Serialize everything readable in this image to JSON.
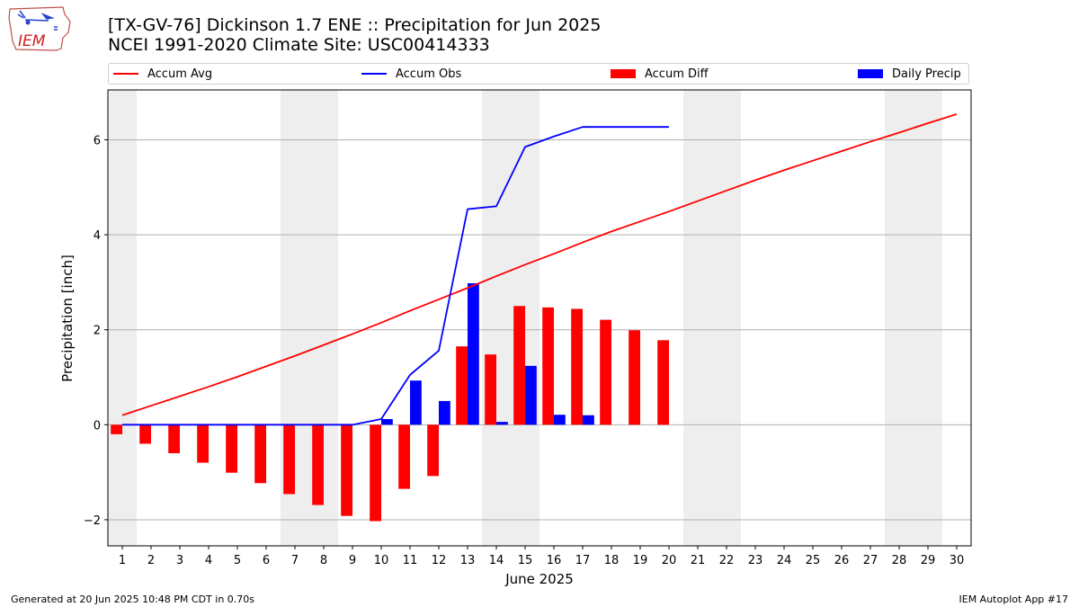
{
  "header": {
    "title": "[TX-GV-76] Dickinson 1.7 ENE :: Precipitation for Jun 2025",
    "subtitle": "NCEI 1991-2020 Climate Site: USC00414333",
    "logo_text": "IEM"
  },
  "footer": {
    "generated": "Generated at 20 Jun 2025 10:48 PM CDT in 0.70s",
    "app": "IEM Autoplot App #17"
  },
  "colors": {
    "avg": "#ff0000",
    "obs": "#0000ff",
    "diff": "#ff0000",
    "daily": "#0000ff",
    "weekend_shade": "#eeeeee",
    "grid": "#b0b0b0"
  },
  "chart_data": {
    "type": "bar",
    "xlabel": "June 2025",
    "ylabel": "Precipitation [inch]",
    "xlim": [
      0.5,
      30.5
    ],
    "ylim": [
      -2.55,
      7.05
    ],
    "yticks": [
      -2,
      0,
      2,
      4,
      6
    ],
    "ytick_labels": [
      "−2",
      "0",
      "2",
      "4",
      "6"
    ],
    "grid": "horizontal",
    "legend_position": "top",
    "days": [
      1,
      2,
      3,
      4,
      5,
      6,
      7,
      8,
      9,
      10,
      11,
      12,
      13,
      14,
      15,
      16,
      17,
      18,
      19,
      20,
      21,
      22,
      23,
      24,
      25,
      26,
      27,
      28,
      29,
      30
    ],
    "weekend_days": [
      1,
      7,
      8,
      14,
      15,
      21,
      22,
      28,
      29
    ],
    "series": [
      {
        "name": "Accum Avg",
        "kind": "line",
        "days": [
          1,
          2,
          3,
          4,
          5,
          6,
          7,
          8,
          9,
          10,
          11,
          12,
          13,
          14,
          15,
          16,
          17,
          18,
          19,
          20,
          21,
          22,
          23,
          24,
          25,
          26,
          27,
          28,
          29,
          30
        ],
        "values": [
          0.2,
          0.4,
          0.6,
          0.8,
          1.01,
          1.23,
          1.45,
          1.68,
          1.91,
          2.15,
          2.4,
          2.64,
          2.88,
          3.13,
          3.37,
          3.6,
          3.84,
          4.07,
          4.28,
          4.49,
          4.71,
          4.93,
          5.15,
          5.36,
          5.56,
          5.76,
          5.96,
          6.15,
          6.35,
          6.54
        ]
      },
      {
        "name": "Accum Obs",
        "kind": "line",
        "days": [
          1,
          2,
          3,
          4,
          5,
          6,
          7,
          8,
          9,
          10,
          11,
          12,
          13,
          14,
          15,
          16,
          17,
          18,
          19,
          20
        ],
        "values": [
          0,
          0,
          0,
          0,
          0,
          0,
          0,
          0,
          0,
          0.12,
          1.05,
          1.56,
          4.54,
          4.6,
          5.85,
          6.07,
          6.27,
          6.27,
          6.27,
          6.27
        ]
      },
      {
        "name": "Accum Diff",
        "kind": "bar",
        "days": [
          1,
          2,
          3,
          4,
          5,
          6,
          7,
          8,
          9,
          10,
          11,
          12,
          13,
          14,
          15,
          16,
          17,
          18,
          19,
          20
        ],
        "values": [
          -0.2,
          -0.4,
          -0.6,
          -0.8,
          -1.01,
          -1.23,
          -1.46,
          -1.69,
          -1.92,
          -2.03,
          -1.35,
          -1.08,
          1.65,
          1.48,
          2.5,
          2.47,
          2.44,
          2.21,
          1.99,
          1.78
        ]
      },
      {
        "name": "Daily Precip",
        "kind": "bar",
        "days": [
          1,
          2,
          3,
          4,
          5,
          6,
          7,
          8,
          9,
          10,
          11,
          12,
          13,
          14,
          15,
          16,
          17,
          18,
          19,
          20
        ],
        "values": [
          0,
          0,
          0,
          0,
          0,
          0,
          0,
          0,
          0,
          0.12,
          0.93,
          0.5,
          2.98,
          0.06,
          1.24,
          0.21,
          0.2,
          0,
          0,
          0
        ]
      }
    ]
  }
}
